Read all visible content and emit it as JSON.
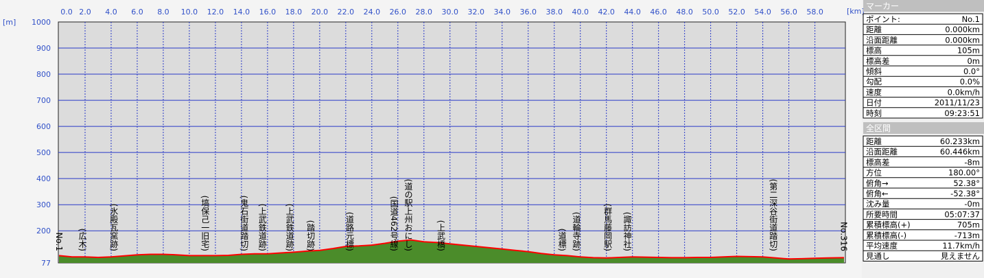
{
  "chart_data": {
    "type": "area",
    "y_unit": "[m]",
    "x_unit": "[km]",
    "xlim": [
      0,
      60.233
    ],
    "ylim": [
      77,
      1000
    ],
    "xticks": [
      {
        "value": 0,
        "label": "0.0"
      },
      {
        "value": 2,
        "label": "2.0"
      },
      {
        "value": 4,
        "label": "4.0"
      },
      {
        "value": 6,
        "label": "6.0"
      },
      {
        "value": 8,
        "label": "8.0"
      },
      {
        "value": 10,
        "label": "10.0"
      },
      {
        "value": 12,
        "label": "12.0"
      },
      {
        "value": 14,
        "label": "14.0"
      },
      {
        "value": 16,
        "label": "16.0"
      },
      {
        "value": 18,
        "label": "18.0"
      },
      {
        "value": 20,
        "label": "20.0"
      },
      {
        "value": 22,
        "label": "22.0"
      },
      {
        "value": 24,
        "label": "24.0"
      },
      {
        "value": 26,
        "label": "26.0"
      },
      {
        "value": 28,
        "label": "28.0"
      },
      {
        "value": 30,
        "label": "30.0"
      },
      {
        "value": 32,
        "label": "32.0"
      },
      {
        "value": 34,
        "label": "34.0"
      },
      {
        "value": 36,
        "label": "36.0"
      },
      {
        "value": 38,
        "label": "38.0"
      },
      {
        "value": 40,
        "label": "40.0"
      },
      {
        "value": 42,
        "label": "42.0"
      },
      {
        "value": 44,
        "label": "44.0"
      },
      {
        "value": 46,
        "label": "46.0"
      },
      {
        "value": 48,
        "label": "48.0"
      },
      {
        "value": 50,
        "label": "50.0"
      },
      {
        "value": 52,
        "label": "52.0"
      },
      {
        "value": 54,
        "label": "54.0"
      },
      {
        "value": 56,
        "label": "56.0"
      },
      {
        "value": 58,
        "label": "58.0"
      }
    ],
    "yticks": [
      77,
      200,
      300,
      400,
      500,
      600,
      700,
      800,
      900,
      1000
    ],
    "grid": true,
    "fill_color": "#4b8c2a",
    "line_color": "#ff0000",
    "x": [
      0,
      1,
      2,
      3,
      4,
      5,
      6,
      7,
      8,
      9,
      10,
      11,
      12,
      13,
      14,
      15,
      16,
      17,
      18,
      19,
      20,
      21,
      22,
      23,
      24,
      25,
      26,
      27,
      28,
      29,
      30,
      31,
      32,
      33,
      34,
      35,
      36,
      37,
      38,
      39,
      40,
      41,
      42,
      43,
      44,
      45,
      46,
      47,
      48,
      49,
      50,
      51,
      52,
      53,
      54,
      55,
      56,
      57,
      58,
      59,
      60.233
    ],
    "values": [
      105,
      100,
      100,
      98,
      100,
      104,
      108,
      110,
      110,
      108,
      105,
      105,
      105,
      106,
      110,
      112,
      112,
      115,
      118,
      122,
      125,
      132,
      140,
      142,
      145,
      152,
      160,
      165,
      158,
      155,
      150,
      145,
      140,
      135,
      130,
      125,
      120,
      113,
      108,
      105,
      100,
      97,
      96,
      98,
      100,
      99,
      98,
      97,
      97,
      98,
      98,
      100,
      102,
      101,
      100,
      96,
      92,
      93,
      95,
      96,
      97
    ]
  },
  "annotations": [
    {
      "text": "No.1",
      "x": 0
    },
    {
      "text": "(広木)",
      "x": 1.8
    },
    {
      "text": "(氷殿瓦窯跡)",
      "x": 4.2
    },
    {
      "text": "(塙保己一旧宅)",
      "x": 11.2
    },
    {
      "text": "(鬼石街道踏切)",
      "x": 14.2
    },
    {
      "text": "(上武鉄道跡)",
      "x": 15.6
    },
    {
      "text": "(上武鉄道跡)",
      "x": 17.7
    },
    {
      "text": "(踏切跡)",
      "x": 19.3
    },
    {
      "text": "(道路元標)",
      "x": 22.3
    },
    {
      "text": "(国道462号線)",
      "x": 25.7
    },
    {
      "text": "(道の駅上州おにし)",
      "x": 26.8
    },
    {
      "text": "(上武橋)",
      "x": 29.3
    },
    {
      "text": "(道標)",
      "x": 38.6
    },
    {
      "text": "(道輪寺跡)",
      "x": 39.7
    },
    {
      "text": "(群馬藤岡駅)",
      "x": 42.1
    },
    {
      "text": "(諏訪神社)",
      "x": 43.6
    },
    {
      "text": "(第二深谷街道踏切)",
      "x": 54.8
    },
    {
      "text": "No.316",
      "x": 60.2
    }
  ],
  "marker": {
    "title": "マーカー",
    "rows": [
      [
        "ポイント:",
        "No.1"
      ],
      [
        "距離",
        "0.000km"
      ],
      [
        "沿面距離",
        "0.000km"
      ],
      [
        "標高",
        "105m"
      ],
      [
        "標高差",
        "0m"
      ],
      [
        "傾斜",
        "0.0°"
      ],
      [
        "勾配",
        "0.0%"
      ],
      [
        "速度",
        "0.0km/h"
      ],
      [
        "日付",
        "2011/11/23"
      ],
      [
        "時刻",
        "09:23:51"
      ]
    ]
  },
  "total": {
    "title": "全区間",
    "rows": [
      [
        "距離",
        "60.233km"
      ],
      [
        "沿面距離",
        "60.446km"
      ],
      [
        "標高差",
        "-8m"
      ],
      [
        "方位",
        "180.00°"
      ],
      [
        "俯角→",
        "52.38°"
      ],
      [
        "俯角←",
        "-52.38°"
      ],
      [
        "沈み量",
        "-0m"
      ],
      [
        "所要時間",
        "05:07:37"
      ],
      [
        "累積標高(+)",
        "705m"
      ],
      [
        "累積標高(-)",
        "-713m"
      ],
      [
        "平均速度",
        "11.7km/h"
      ],
      [
        "見通し",
        "見えません"
      ]
    ]
  }
}
